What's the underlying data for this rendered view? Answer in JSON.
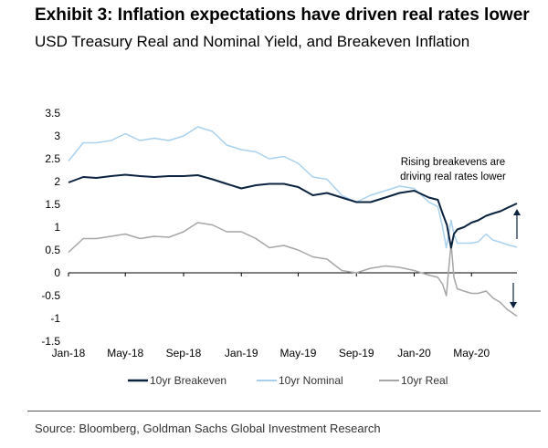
{
  "title": "Exhibit 3: Inflation expectations have driven real rates lower",
  "subtitle": "USD Treasury Real and Nominal Yield, and Breakeven Inflation",
  "source": "Source: Bloomberg, Goldman Sachs Global Investment Research",
  "chart_data": {
    "type": "line",
    "title": "",
    "xlabel": "",
    "ylabel": "",
    "ylim": [
      -1.5,
      3.5
    ],
    "yticks": [
      3.5,
      3,
      2.5,
      2,
      1.5,
      1,
      0.5,
      0,
      -0.5,
      -1,
      -1.5
    ],
    "ytick_labels": [
      "3.5",
      "3",
      "2.5",
      "2",
      "1.5",
      "1",
      "0.5",
      "0",
      "-0.5",
      "-1",
      "-1.5"
    ],
    "xrange": [
      "2018-01-01",
      "2020-08-05"
    ],
    "xticks": [
      "Jan-18",
      "May-18",
      "Sep-18",
      "Jan-19",
      "May-19",
      "Sep-19",
      "Jan-20",
      "May-20"
    ],
    "xtick_dates": [
      "2018-01-01",
      "2018-05-01",
      "2018-09-01",
      "2019-01-01",
      "2019-05-01",
      "2019-09-01",
      "2020-01-01",
      "2020-05-01"
    ],
    "grid": false,
    "legend_position": "bottom",
    "series": [
      {
        "name": "10yr Breakeven",
        "color": "#0c2340",
        "points": [
          [
            "2018-01-01",
            1.98
          ],
          [
            "2018-02-01",
            2.1
          ],
          [
            "2018-03-01",
            2.08
          ],
          [
            "2018-04-01",
            2.12
          ],
          [
            "2018-05-01",
            2.15
          ],
          [
            "2018-06-01",
            2.12
          ],
          [
            "2018-07-01",
            2.1
          ],
          [
            "2018-08-01",
            2.12
          ],
          [
            "2018-09-01",
            2.12
          ],
          [
            "2018-10-01",
            2.14
          ],
          [
            "2018-11-01",
            2.05
          ],
          [
            "2018-12-01",
            1.95
          ],
          [
            "2019-01-01",
            1.85
          ],
          [
            "2019-02-01",
            1.92
          ],
          [
            "2019-03-01",
            1.95
          ],
          [
            "2019-04-01",
            1.95
          ],
          [
            "2019-05-01",
            1.88
          ],
          [
            "2019-06-01",
            1.7
          ],
          [
            "2019-07-01",
            1.75
          ],
          [
            "2019-08-01",
            1.65
          ],
          [
            "2019-09-01",
            1.55
          ],
          [
            "2019-10-01",
            1.55
          ],
          [
            "2019-11-01",
            1.65
          ],
          [
            "2019-12-01",
            1.75
          ],
          [
            "2020-01-01",
            1.8
          ],
          [
            "2020-02-01",
            1.65
          ],
          [
            "2020-02-20",
            1.6
          ],
          [
            "2020-03-01",
            1.3
          ],
          [
            "2020-03-10",
            1.05
          ],
          [
            "2020-03-19",
            0.55
          ],
          [
            "2020-03-25",
            0.85
          ],
          [
            "2020-04-01",
            0.95
          ],
          [
            "2020-04-15",
            1.0
          ],
          [
            "2020-05-01",
            1.1
          ],
          [
            "2020-05-15",
            1.15
          ],
          [
            "2020-06-01",
            1.25
          ],
          [
            "2020-06-15",
            1.3
          ],
          [
            "2020-07-01",
            1.35
          ],
          [
            "2020-07-15",
            1.42
          ],
          [
            "2020-08-05",
            1.52
          ]
        ]
      },
      {
        "name": "10yr Nominal",
        "color": "#a9d1ee",
        "points": [
          [
            "2018-01-01",
            2.45
          ],
          [
            "2018-02-01",
            2.85
          ],
          [
            "2018-03-01",
            2.85
          ],
          [
            "2018-04-01",
            2.9
          ],
          [
            "2018-05-01",
            3.05
          ],
          [
            "2018-06-01",
            2.9
          ],
          [
            "2018-07-01",
            2.95
          ],
          [
            "2018-08-01",
            2.9
          ],
          [
            "2018-09-01",
            3.0
          ],
          [
            "2018-10-01",
            3.2
          ],
          [
            "2018-11-01",
            3.1
          ],
          [
            "2018-12-01",
            2.8
          ],
          [
            "2019-01-01",
            2.7
          ],
          [
            "2019-02-01",
            2.65
          ],
          [
            "2019-03-01",
            2.5
          ],
          [
            "2019-04-01",
            2.55
          ],
          [
            "2019-05-01",
            2.4
          ],
          [
            "2019-06-01",
            2.1
          ],
          [
            "2019-07-01",
            2.05
          ],
          [
            "2019-08-01",
            1.7
          ],
          [
            "2019-09-01",
            1.55
          ],
          [
            "2019-10-01",
            1.7
          ],
          [
            "2019-11-01",
            1.8
          ],
          [
            "2019-12-01",
            1.9
          ],
          [
            "2020-01-01",
            1.85
          ],
          [
            "2020-02-01",
            1.55
          ],
          [
            "2020-02-20",
            1.45
          ],
          [
            "2020-03-01",
            1.0
          ],
          [
            "2020-03-09",
            0.55
          ],
          [
            "2020-03-19",
            1.15
          ],
          [
            "2020-03-25",
            0.85
          ],
          [
            "2020-04-01",
            0.65
          ],
          [
            "2020-04-15",
            0.65
          ],
          [
            "2020-05-01",
            0.65
          ],
          [
            "2020-05-15",
            0.68
          ],
          [
            "2020-06-01",
            0.85
          ],
          [
            "2020-06-15",
            0.72
          ],
          [
            "2020-07-01",
            0.67
          ],
          [
            "2020-07-15",
            0.62
          ],
          [
            "2020-08-05",
            0.56
          ]
        ]
      },
      {
        "name": "10yr Real",
        "color": "#a6a6a6",
        "points": [
          [
            "2018-01-01",
            0.45
          ],
          [
            "2018-02-01",
            0.75
          ],
          [
            "2018-03-01",
            0.75
          ],
          [
            "2018-04-01",
            0.8
          ],
          [
            "2018-05-01",
            0.85
          ],
          [
            "2018-06-01",
            0.75
          ],
          [
            "2018-07-01",
            0.8
          ],
          [
            "2018-08-01",
            0.78
          ],
          [
            "2018-09-01",
            0.9
          ],
          [
            "2018-10-01",
            1.1
          ],
          [
            "2018-11-01",
            1.05
          ],
          [
            "2018-12-01",
            0.9
          ],
          [
            "2019-01-01",
            0.9
          ],
          [
            "2019-02-01",
            0.75
          ],
          [
            "2019-03-01",
            0.55
          ],
          [
            "2019-04-01",
            0.6
          ],
          [
            "2019-05-01",
            0.5
          ],
          [
            "2019-06-01",
            0.35
          ],
          [
            "2019-07-01",
            0.3
          ],
          [
            "2019-08-01",
            0.05
          ],
          [
            "2019-09-01",
            0.0
          ],
          [
            "2019-10-01",
            0.1
          ],
          [
            "2019-11-01",
            0.15
          ],
          [
            "2019-12-01",
            0.12
          ],
          [
            "2020-01-01",
            0.05
          ],
          [
            "2020-02-01",
            -0.05
          ],
          [
            "2020-02-20",
            -0.1
          ],
          [
            "2020-03-01",
            -0.25
          ],
          [
            "2020-03-09",
            -0.5
          ],
          [
            "2020-03-19",
            0.65
          ],
          [
            "2020-03-25",
            -0.1
          ],
          [
            "2020-04-01",
            -0.35
          ],
          [
            "2020-04-15",
            -0.4
          ],
          [
            "2020-05-01",
            -0.45
          ],
          [
            "2020-05-15",
            -0.45
          ],
          [
            "2020-06-01",
            -0.4
          ],
          [
            "2020-06-15",
            -0.55
          ],
          [
            "2020-07-01",
            -0.65
          ],
          [
            "2020-07-15",
            -0.8
          ],
          [
            "2020-08-05",
            -0.95
          ]
        ]
      }
    ],
    "annotations": [
      {
        "text_lines": [
          "Rising breakevens are",
          "driving real rates lower"
        ]
      }
    ]
  }
}
